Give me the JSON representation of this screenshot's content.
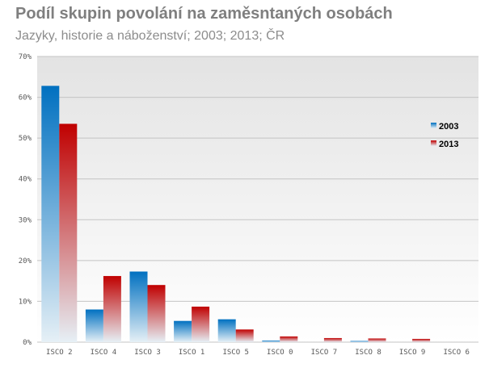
{
  "chart_data": {
    "type": "bar",
    "title": "Podíl skupin povolání na zaměsntaných osobách",
    "subtitle": "Jazyky, historie a náboženství; 2003; 2013; ČR",
    "categories": [
      "ISCO 2",
      "ISCO 4",
      "ISCO 3",
      "ISCO 1",
      "ISCO 5",
      "ISCO 0",
      "ISCO 7",
      "ISCO 8",
      "ISCO 9",
      "ISCO 6"
    ],
    "series": [
      {
        "name": "2003",
        "values": [
          62.8,
          8.0,
          17.3,
          5.2,
          5.6,
          0.4,
          0.0,
          0.3,
          0.0,
          0.0
        ],
        "color": "#0070c0"
      },
      {
        "name": "2013",
        "values": [
          53.5,
          16.2,
          14.0,
          8.7,
          3.1,
          1.4,
          1.0,
          0.9,
          0.8,
          0.0
        ],
        "color": "#c00000"
      }
    ],
    "ylim": [
      0,
      70
    ],
    "yticks": [
      "0%",
      "10%",
      "20%",
      "30%",
      "40%",
      "50%",
      "60%",
      "70%"
    ],
    "grid": true,
    "legend": "right"
  }
}
